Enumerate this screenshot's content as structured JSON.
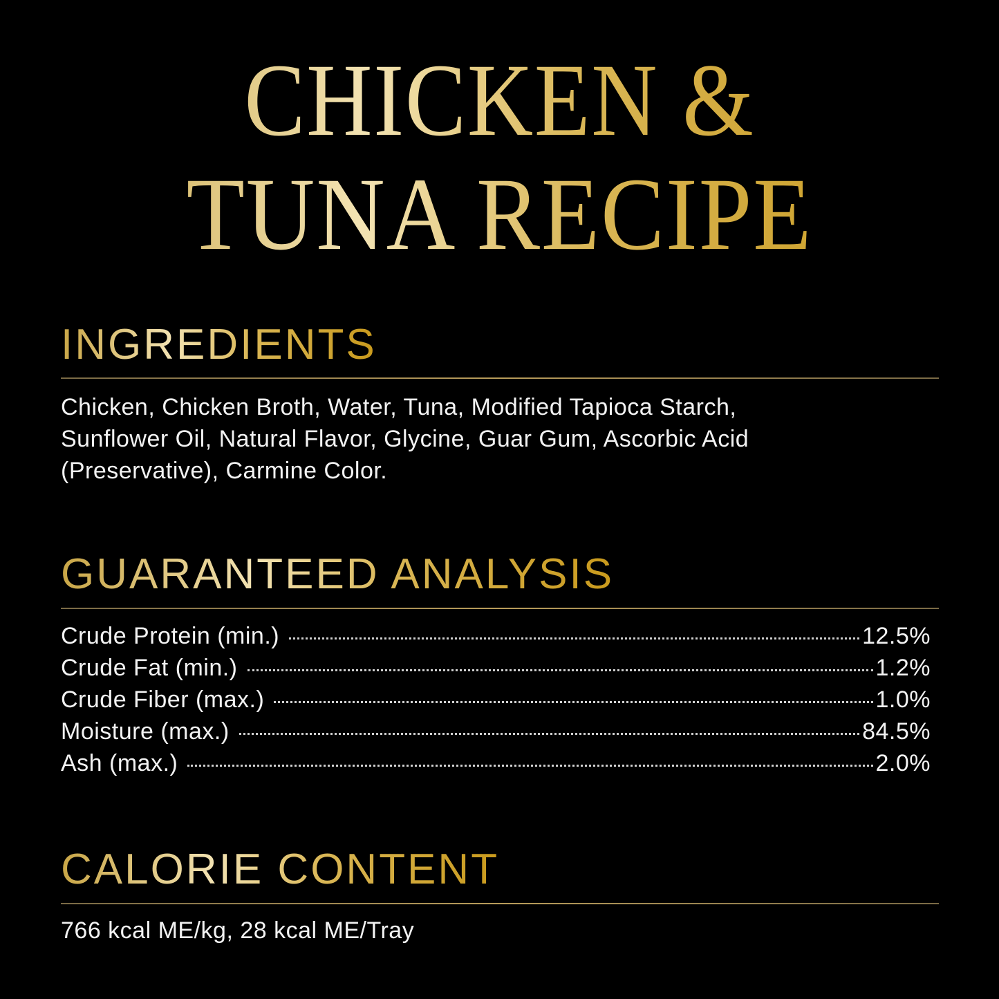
{
  "title": {
    "line1": "CHICKEN &",
    "line2": "TUNA RECIPE"
  },
  "ingredients": {
    "heading": "INGREDIENTS",
    "lines": [
      "Chicken, Chicken Broth, Water, Tuna, Modified Tapioca Starch,",
      "Sunflower Oil, Natural Flavor, Glycine, Guar Gum, Ascorbic Acid",
      "(Preservative), Carmine Color."
    ]
  },
  "analysis": {
    "heading": "GUARANTEED ANALYSIS",
    "rows": [
      {
        "label": "Crude Protein (min.)",
        "value": "12.5%"
      },
      {
        "label": "Crude Fat (min.)",
        "value": "1.2%"
      },
      {
        "label": "Crude Fiber (max.)",
        "value": "1.0%"
      },
      {
        "label": "Moisture (max.)",
        "value": "84.5%"
      },
      {
        "label": "Ash (max.)",
        "value": "2.0%"
      }
    ]
  },
  "calorie": {
    "heading": "CALORIE CONTENT",
    "text": "766 kcal ME/kg, 28 kcal ME/Tray"
  },
  "colors": {
    "background": "#000000",
    "gold": "#d4b04a",
    "text": "#f2f2f2"
  }
}
